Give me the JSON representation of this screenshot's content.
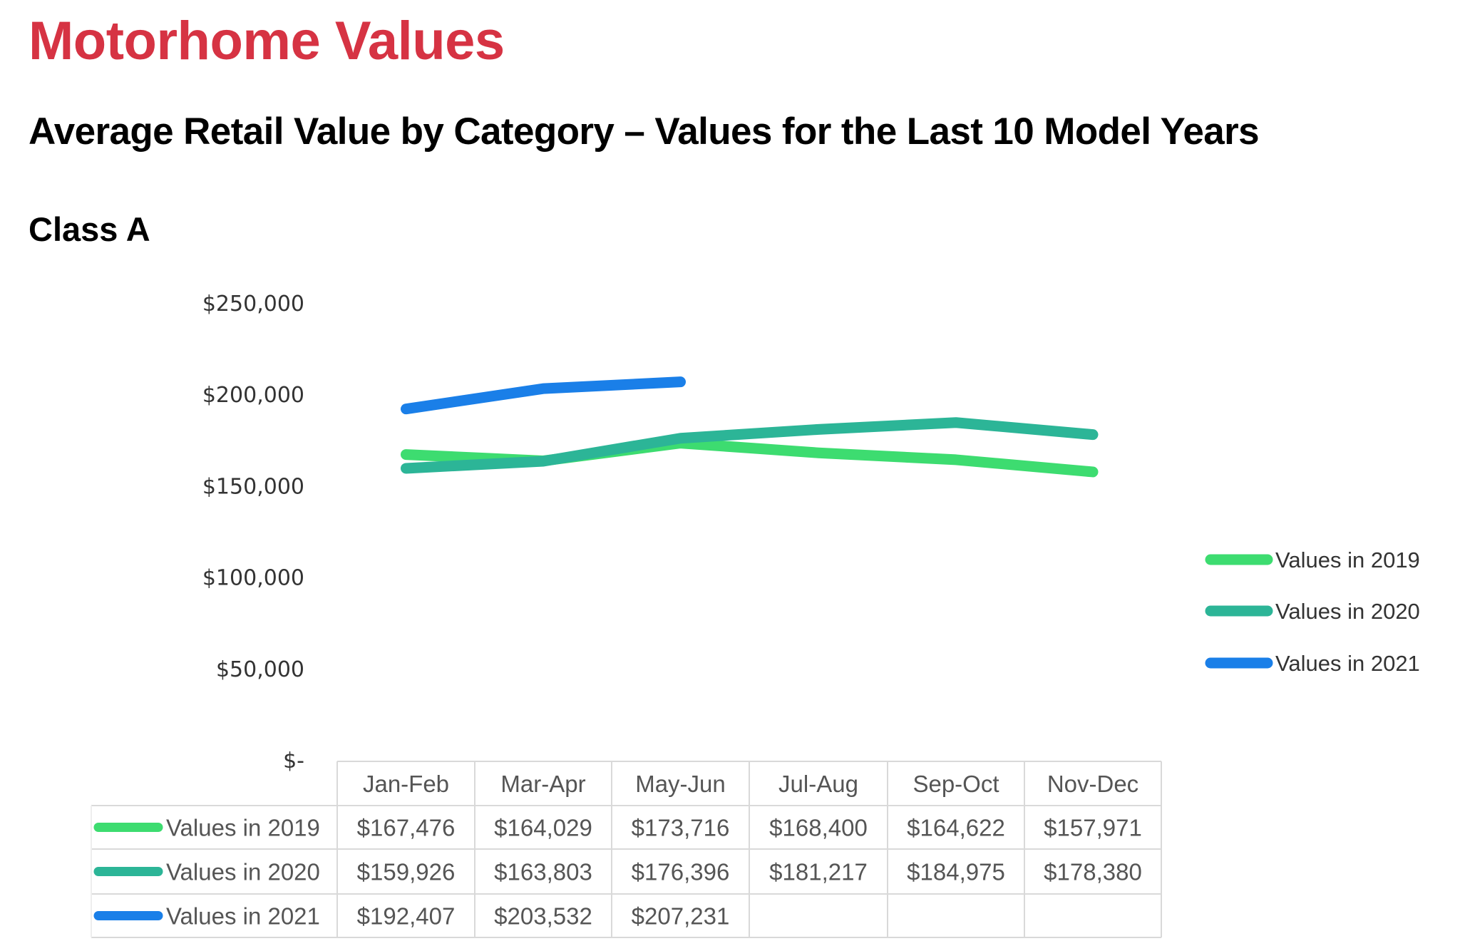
{
  "page": {
    "title": "Motorhome Values",
    "subtitle": "Average Retail Value by Category – Values for the Last 10 Model Years",
    "section": "Class A"
  },
  "chart_data": {
    "type": "line",
    "title": "",
    "xlabel": "",
    "ylabel": "",
    "categories": [
      "Jan-Feb",
      "Mar-Apr",
      "May-Jun",
      "Jul-Aug",
      "Sep-Oct",
      "Nov-Dec"
    ],
    "ylim": [
      0,
      250000
    ],
    "yticks": [
      0,
      50000,
      100000,
      150000,
      200000,
      250000
    ],
    "ytick_labels": [
      "$-",
      "$50,000",
      "$100,000",
      "$150,000",
      "$200,000",
      "$250,000"
    ],
    "grid": false,
    "legend_placement": "right",
    "data_table": true,
    "series": [
      {
        "name": "Values in 2019",
        "color": "#3ddc70",
        "values": [
          167476,
          164029,
          173716,
          168400,
          164622,
          157971
        ],
        "labels": [
          "$167,476",
          "$164,029",
          "$173,716",
          "$168,400",
          "$164,622",
          "$157,971"
        ]
      },
      {
        "name": "Values in 2020",
        "color": "#2cb597",
        "values": [
          159926,
          163803,
          176396,
          181217,
          184975,
          178380
        ],
        "labels": [
          "$159,926",
          "$163,803",
          "$176,396",
          "$181,217",
          "$184,975",
          "$178,380"
        ]
      },
      {
        "name": "Values in 2021",
        "color": "#1a7fe8",
        "values": [
          192407,
          203532,
          207231,
          null,
          null,
          null
        ],
        "labels": [
          "$192,407",
          "$203,532",
          "$207,231",
          "",
          "",
          ""
        ]
      }
    ]
  }
}
